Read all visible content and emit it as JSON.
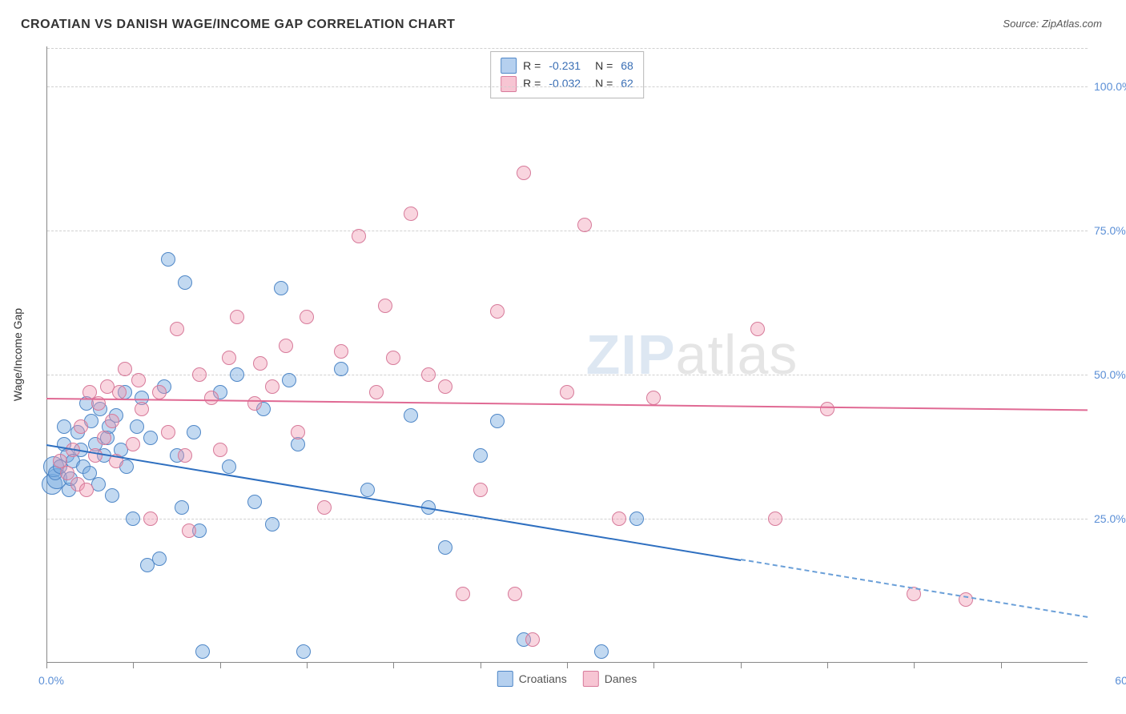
{
  "title": "CROATIAN VS DANISH WAGE/INCOME GAP CORRELATION CHART",
  "source_label": "Source:",
  "source_value": "ZipAtlas.com",
  "ylabel": "Wage/Income Gap",
  "watermark_bold": "ZIP",
  "watermark_light": "atlas",
  "chart": {
    "type": "scatter",
    "xlim": [
      0,
      60
    ],
    "ylim": [
      0,
      107
    ],
    "xtick_positions": [
      0,
      5,
      10,
      15,
      20,
      25,
      30,
      35,
      40,
      45,
      50,
      55
    ],
    "xtick_labels": {
      "left": "0.0%",
      "right": "60.0%"
    },
    "ytick_positions": [
      25,
      50,
      75,
      100
    ],
    "ytick_labels": [
      "25.0%",
      "50.0%",
      "75.0%",
      "100.0%"
    ],
    "grid_color": "#d0d0d0",
    "background_color": "#ffffff",
    "axis_color": "#888888",
    "tick_label_color": "#5b8fd6",
    "series": [
      {
        "name": "Croatians",
        "color_fill": "rgba(120,170,225,0.45)",
        "color_stroke": "#4f87c7",
        "trend_color": "#2e6fc0",
        "R": "-0.231",
        "N": "68",
        "trend": {
          "x1": 0,
          "y1": 38,
          "x2_solid": 40,
          "y2_solid": 18,
          "x2_dash": 60,
          "y2_dash": 8
        },
        "points": [
          [
            0.5,
            33
          ],
          [
            0.8,
            34
          ],
          [
            1.0,
            38
          ],
          [
            1.2,
            36
          ],
          [
            1.0,
            41
          ],
          [
            1.3,
            30
          ],
          [
            1.4,
            32
          ],
          [
            1.5,
            35
          ],
          [
            1.8,
            40
          ],
          [
            2.0,
            37
          ],
          [
            2.1,
            34
          ],
          [
            2.3,
            45
          ],
          [
            2.5,
            33
          ],
          [
            2.6,
            42
          ],
          [
            2.8,
            38
          ],
          [
            3.0,
            31
          ],
          [
            3.1,
            44
          ],
          [
            3.3,
            36
          ],
          [
            3.5,
            39
          ],
          [
            3.6,
            41
          ],
          [
            3.8,
            29
          ],
          [
            4.0,
            43
          ],
          [
            4.3,
            37
          ],
          [
            4.5,
            47
          ],
          [
            4.6,
            34
          ],
          [
            5.0,
            25
          ],
          [
            5.2,
            41
          ],
          [
            5.5,
            46
          ],
          [
            5.8,
            17
          ],
          [
            6.0,
            39
          ],
          [
            6.5,
            18
          ],
          [
            6.8,
            48
          ],
          [
            7.0,
            70
          ],
          [
            7.5,
            36
          ],
          [
            7.8,
            27
          ],
          [
            8.0,
            66
          ],
          [
            8.5,
            40
          ],
          [
            8.8,
            23
          ],
          [
            9.0,
            2
          ],
          [
            10.0,
            47
          ],
          [
            10.5,
            34
          ],
          [
            11.0,
            50
          ],
          [
            12.0,
            28
          ],
          [
            12.5,
            44
          ],
          [
            13.0,
            24
          ],
          [
            13.5,
            65
          ],
          [
            14.0,
            49
          ],
          [
            14.5,
            38
          ],
          [
            14.8,
            2
          ],
          [
            17.0,
            51
          ],
          [
            18.5,
            30
          ],
          [
            21.0,
            43
          ],
          [
            22.0,
            27
          ],
          [
            23.0,
            20
          ],
          [
            25.0,
            36
          ],
          [
            26.0,
            42
          ],
          [
            27.5,
            4
          ],
          [
            32.0,
            2
          ],
          [
            34.0,
            25
          ]
        ],
        "large_points": [
          [
            0.3,
            31
          ],
          [
            0.6,
            32
          ],
          [
            0.4,
            34
          ]
        ]
      },
      {
        "name": "Danes",
        "color_fill": "rgba(240,150,175,0.40)",
        "color_stroke": "#d77a9a",
        "trend_color": "#e06a94",
        "R": "-0.032",
        "N": "62",
        "trend": {
          "x1": 0,
          "y1": 46,
          "x2_solid": 60,
          "y2_solid": 44
        },
        "points": [
          [
            0.8,
            35
          ],
          [
            1.2,
            33
          ],
          [
            1.5,
            37
          ],
          [
            1.8,
            31
          ],
          [
            2.0,
            41
          ],
          [
            2.3,
            30
          ],
          [
            2.5,
            47
          ],
          [
            2.8,
            36
          ],
          [
            3.0,
            45
          ],
          [
            3.3,
            39
          ],
          [
            3.5,
            48
          ],
          [
            3.8,
            42
          ],
          [
            4.0,
            35
          ],
          [
            4.2,
            47
          ],
          [
            4.5,
            51
          ],
          [
            5.0,
            38
          ],
          [
            5.3,
            49
          ],
          [
            5.5,
            44
          ],
          [
            6.0,
            25
          ],
          [
            6.5,
            47
          ],
          [
            7.0,
            40
          ],
          [
            7.5,
            58
          ],
          [
            8.0,
            36
          ],
          [
            8.2,
            23
          ],
          [
            8.8,
            50
          ],
          [
            9.5,
            46
          ],
          [
            10.0,
            37
          ],
          [
            10.5,
            53
          ],
          [
            11.0,
            60
          ],
          [
            12.0,
            45
          ],
          [
            12.3,
            52
          ],
          [
            13.0,
            48
          ],
          [
            13.8,
            55
          ],
          [
            14.5,
            40
          ],
          [
            15.0,
            60
          ],
          [
            16.0,
            27
          ],
          [
            17.0,
            54
          ],
          [
            18.0,
            74
          ],
          [
            19.0,
            47
          ],
          [
            19.5,
            62
          ],
          [
            20.0,
            53
          ],
          [
            21.0,
            78
          ],
          [
            22.0,
            50
          ],
          [
            23.0,
            48
          ],
          [
            24.0,
            12
          ],
          [
            25.0,
            30
          ],
          [
            26.0,
            61
          ],
          [
            27.0,
            12
          ],
          [
            27.5,
            85
          ],
          [
            28.0,
            4
          ],
          [
            30.0,
            47
          ],
          [
            31.0,
            76
          ],
          [
            33.0,
            25
          ],
          [
            35.0,
            46
          ],
          [
            41.0,
            58
          ],
          [
            42.0,
            25
          ],
          [
            45.0,
            44
          ],
          [
            50.0,
            12
          ],
          [
            53.0,
            11
          ]
        ]
      }
    ]
  },
  "legend_bottom": [
    {
      "label": "Croatians",
      "class": "blue"
    },
    {
      "label": "Danes",
      "class": "pink"
    }
  ],
  "legend_top_rows": [
    {
      "swatch": "blue",
      "R": "-0.231",
      "N": "68"
    },
    {
      "swatch": "pink",
      "R": "-0.032",
      "N": "62"
    }
  ]
}
